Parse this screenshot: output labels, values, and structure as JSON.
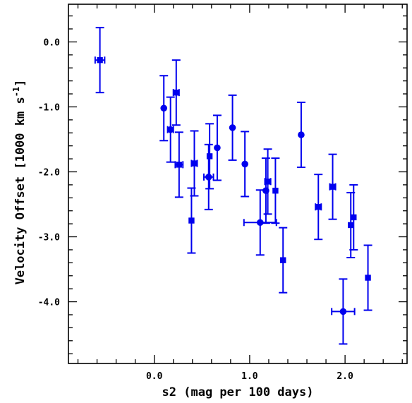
{
  "chart_data": {
    "type": "scatter",
    "xlabel": "s2 (mag per 100 days)",
    "ylabel": "Velocity Offset [1000 km s",
    "ylabel_sup": "-1",
    "ylabel_tail": "]",
    "xlim": [
      -0.9,
      2.65
    ],
    "ylim": [
      -4.95,
      0.58
    ],
    "xticks": [
      0.0,
      1.0,
      2.0
    ],
    "xtick_labels": [
      "0.0",
      "1.0",
      "2.0"
    ],
    "yticks": [
      0.0,
      -1.0,
      -2.0,
      -3.0,
      -4.0
    ],
    "ytick_labels": [
      "0.0",
      "-1.0",
      "-2.0",
      "-3.0",
      "-4.0"
    ],
    "grid": false,
    "color": "#0000ee",
    "points": [
      {
        "x": -0.57,
        "y": -0.28,
        "xerr": 0.05,
        "yerr": 0.5,
        "marker": "square"
      },
      {
        "x": 0.1,
        "y": -1.02,
        "xerr": 0.0,
        "yerr": 0.5,
        "marker": "circle"
      },
      {
        "x": 0.17,
        "y": -1.35,
        "xerr": 0.03,
        "yerr": 0.5,
        "marker": "circle"
      },
      {
        "x": 0.23,
        "y": -0.78,
        "xerr": 0.03,
        "yerr": 0.5,
        "marker": "square"
      },
      {
        "x": 0.26,
        "y": -1.89,
        "xerr": 0.04,
        "yerr": 0.5,
        "marker": "square"
      },
      {
        "x": 0.39,
        "y": -2.75,
        "xerr": 0.0,
        "yerr": 0.5,
        "marker": "square"
      },
      {
        "x": 0.42,
        "y": -1.87,
        "xerr": 0.03,
        "yerr": 0.5,
        "marker": "square"
      },
      {
        "x": 0.57,
        "y": -2.08,
        "xerr": 0.05,
        "yerr": 0.5,
        "marker": "circle"
      },
      {
        "x": 0.58,
        "y": -1.76,
        "xerr": 0.0,
        "yerr": 0.5,
        "marker": "square"
      },
      {
        "x": 0.66,
        "y": -1.63,
        "xerr": 0.0,
        "yerr": 0.5,
        "marker": "circle"
      },
      {
        "x": 0.82,
        "y": -1.32,
        "xerr": 0.0,
        "yerr": 0.5,
        "marker": "circle"
      },
      {
        "x": 0.95,
        "y": -1.88,
        "xerr": 0.0,
        "yerr": 0.5,
        "marker": "circle"
      },
      {
        "x": 1.11,
        "y": -2.78,
        "xerr": 0.17,
        "yerr": 0.5,
        "marker": "circle"
      },
      {
        "x": 1.17,
        "y": -2.29,
        "xerr": 0.0,
        "yerr": 0.5,
        "marker": "circle"
      },
      {
        "x": 1.19,
        "y": -2.15,
        "xerr": 0.03,
        "yerr": 0.5,
        "marker": "square"
      },
      {
        "x": 1.27,
        "y": -2.29,
        "xerr": 0.0,
        "yerr": 0.5,
        "marker": "square"
      },
      {
        "x": 1.35,
        "y": -3.36,
        "xerr": 0.0,
        "yerr": 0.5,
        "marker": "square"
      },
      {
        "x": 1.54,
        "y": -1.43,
        "xerr": 0.0,
        "yerr": 0.5,
        "marker": "circle"
      },
      {
        "x": 1.72,
        "y": -2.54,
        "xerr": 0.03,
        "yerr": 0.5,
        "marker": "square"
      },
      {
        "x": 1.87,
        "y": -2.23,
        "xerr": 0.03,
        "yerr": 0.5,
        "marker": "square"
      },
      {
        "x": 1.98,
        "y": -4.15,
        "xerr": 0.12,
        "yerr": 0.5,
        "marker": "circle"
      },
      {
        "x": 2.06,
        "y": -2.82,
        "xerr": 0.0,
        "yerr": 0.5,
        "marker": "square"
      },
      {
        "x": 2.09,
        "y": -2.7,
        "xerr": 0.0,
        "yerr": 0.5,
        "marker": "square"
      },
      {
        "x": 2.24,
        "y": -3.63,
        "xerr": 0.0,
        "yerr": 0.5,
        "marker": "square"
      }
    ]
  }
}
